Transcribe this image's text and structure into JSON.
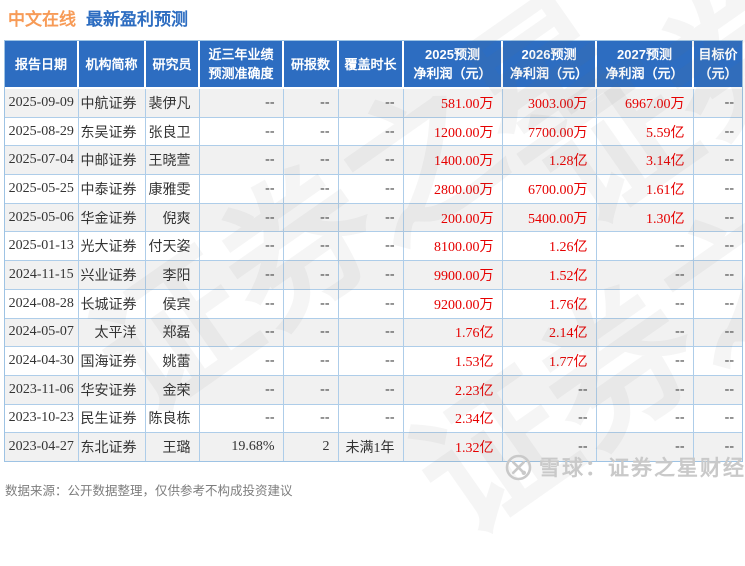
{
  "title": {
    "stock_name": "中文在线",
    "page_title": "最新盈利预测"
  },
  "table": {
    "headers": [
      [
        "报告日期"
      ],
      [
        "机构简称"
      ],
      [
        "研究员"
      ],
      [
        "近三年业绩",
        "预测准确度"
      ],
      [
        "研报数"
      ],
      [
        "覆盖时长"
      ],
      [
        "2025预测",
        "净利润（元）"
      ],
      [
        "2026预测",
        "净利润（元）"
      ],
      [
        "2027预测",
        "净利润（元）"
      ],
      [
        "目标价",
        "（元）"
      ]
    ],
    "rows": [
      [
        "2025-09-09",
        "中航证券",
        "裴伊凡",
        "--",
        "--",
        "--",
        "581.00万",
        "3003.00万",
        "6967.00万",
        "--"
      ],
      [
        "2025-08-29",
        "东吴证券",
        "张良卫",
        "--",
        "--",
        "--",
        "1200.00万",
        "7700.00万",
        "5.59亿",
        "--"
      ],
      [
        "2025-07-04",
        "中邮证券",
        "王晓萱",
        "--",
        "--",
        "--",
        "1400.00万",
        "1.28亿",
        "3.14亿",
        "--"
      ],
      [
        "2025-05-25",
        "中泰证券",
        "康雅雯",
        "--",
        "--",
        "--",
        "2800.00万",
        "6700.00万",
        "1.61亿",
        "--"
      ],
      [
        "2025-05-06",
        "华金证券",
        "倪爽",
        "--",
        "--",
        "--",
        "200.00万",
        "5400.00万",
        "1.30亿",
        "--"
      ],
      [
        "2025-01-13",
        "光大证券",
        "付天姿",
        "--",
        "--",
        "--",
        "8100.00万",
        "1.26亿",
        "--",
        "--"
      ],
      [
        "2024-11-15",
        "兴业证券",
        "李阳",
        "--",
        "--",
        "--",
        "9900.00万",
        "1.52亿",
        "--",
        "--"
      ],
      [
        "2024-08-28",
        "长城证券",
        "侯宾",
        "--",
        "--",
        "--",
        "9200.00万",
        "1.76亿",
        "--",
        "--"
      ],
      [
        "2024-05-07",
        "太平洋",
        "郑磊",
        "--",
        "--",
        "--",
        "1.76亿",
        "2.14亿",
        "--",
        "--"
      ],
      [
        "2024-04-30",
        "国海证券",
        "姚蕾",
        "--",
        "--",
        "--",
        "1.53亿",
        "1.77亿",
        "--",
        "--"
      ],
      [
        "2023-11-06",
        "华安证券",
        "金荣",
        "--",
        "--",
        "--",
        "2.23亿",
        "--",
        "--",
        "--"
      ],
      [
        "2023-10-23",
        "民生证券",
        "陈良栋",
        "--",
        "--",
        "--",
        "2.34亿",
        "--",
        "--",
        "--"
      ],
      [
        "2023-04-27",
        "东北证券",
        "王璐",
        "19.68%",
        "2",
        "未满1年",
        "1.32亿",
        "--",
        "--",
        "--"
      ]
    ]
  },
  "footer": {
    "source_note": "数据来源：公开数据整理，仅供参考不构成投资建议"
  },
  "watermarks": {
    "diagonal_text": "证券之星",
    "brand_text": "雪球：证券之星财经",
    "brand_icon": "xueqiu-snowball-icon"
  },
  "colors": {
    "header_bg": "#2d6dc1",
    "title_orange": "#f79b57",
    "title_blue": "#2d6dc1",
    "value_red": "#e60000",
    "row_alt": "#f1f1f1",
    "grid_border": "#aecde9",
    "watermark_gray": "#c9c9c9"
  }
}
